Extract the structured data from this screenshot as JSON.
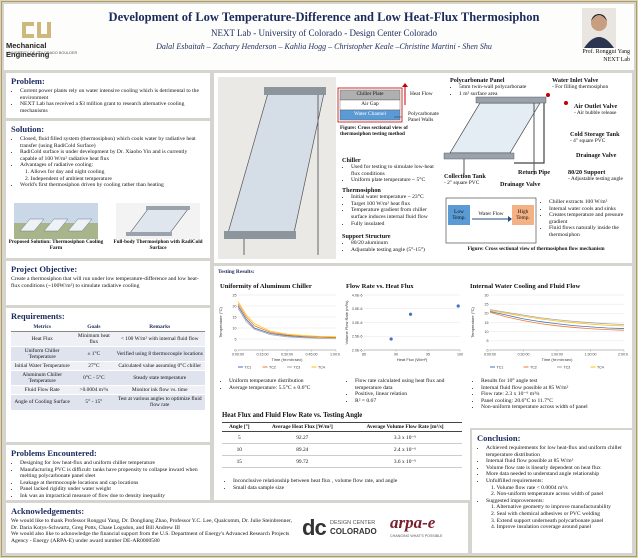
{
  "header": {
    "title": "Development of Low Temperature-Difference and Low Heat-Flux Thermosiphon",
    "subtitle": "NEXT Lab - University of Colorado - Design Center Colorado",
    "authors": "Dalal Esbaitah – Zachary Henderson – Kahlia Hogg – Christopher Keale –Christine Martini - Shen Shu",
    "logo": "Mechanical Engineering",
    "logo_sub": "UNIVERSITY OF COLORADO BOULDER",
    "advisor": "Prof. Ronggui Yang",
    "advisor_lab": "NEXT Lab"
  },
  "problem": {
    "heading": "Problem:",
    "items": [
      "Current power plants rely on water intensive cooling which is detrimental to the environment",
      "NEXT Lab has received a $3 million grant to research alternative cooling mechanisms"
    ]
  },
  "solution": {
    "heading": "Solution:",
    "items": [
      "Closed, fluid filled system (thermosiphon) which cools water by radiative heat transfer (using RadiCold Surface)",
      "RadiCold surface is under development by Dr. Xiaobo Yin and is currently capable of 100 W/m² radiative heat flux",
      "Advantages of radiative cooling:"
    ],
    "advantages": [
      "1. Allows for day and night cooling",
      "2. Independent of ambient temperature"
    ],
    "final_item": "World's first thermosiphon driven by cooling rather than heating",
    "figures": [
      {
        "caption": "Proposed Solution: Thermosiphon Cooling Farm"
      },
      {
        "caption": "Full-body Thermosiphon with RadiCold Surface"
      }
    ]
  },
  "objective": {
    "heading": "Project Objective:",
    "text": "Create a thermosiphon that will run under low temperature-difference and low heat-flux conditions (~100W/m²) to simulate radiative cooling"
  },
  "requirements": {
    "heading": "Requirements:",
    "columns": [
      "Metrics",
      "Goals",
      "Remarks"
    ],
    "rows": [
      [
        "Heat Flux",
        "Minimum heat flux",
        "< 100 W/m² with internal fluid flow"
      ],
      [
        "Uniform Chiller Temperature",
        "± 1°C",
        "Verified using 8 thermocouple locations"
      ],
      [
        "Initial Water Temperature",
        "27°C",
        "Calculated value assuming 0°C chiller"
      ],
      [
        "Aluminum Chiller Temperature",
        "0°C - 5°C",
        "Steady state temperature"
      ],
      [
        "Fluid Flow Rate",
        ">0.0004 m³/s",
        "Monitor ink flow vs. time"
      ],
      [
        "Angle of Cooling Surface",
        "5° - 15°",
        "Test at various angles to optimize fluid flow rate"
      ]
    ]
  },
  "problems": {
    "heading": "Problems Encountered:",
    "items": [
      "Designing for low heat-flux and uniform chiller temperature",
      "Manufacturing PVC is difficult: tanks have propensity to collapse inward when melting polycarbonate panel sleet",
      "Leakage at thermocouple locations and cap locations",
      "Panel lacked rigidity under water weight",
      "Ink was an impractical measure of flow due to density inequality"
    ]
  },
  "acknowledgements": {
    "heading": "Acknowledgements:",
    "paragraphs": [
      "We would like to thank Professor Ronggui Yang, Dr. Dongliang Zhao, Professor Y.C. Lee, Qualcomm, Dr. Julie Steinbrenner, Dr. Daria Kotys-Schwartz, Greg Potts, Chase Logsdon, and Bill Andrew III",
      "We would also like to acknowledge the financial support from the U.S. Department of Energy's Advanced Research Projects Agency - Energy (ARPA-E) under award number DE-AR0000580"
    ],
    "logos": {
      "dc_mark": "dc",
      "dcc_line1": "DESIGN CENTER",
      "dcc_line2": "COLORADO",
      "arpae": "arpa-e",
      "arpae_tag": "CHANGING WHAT'S POSSIBLE"
    }
  },
  "design": {
    "cross_section": {
      "chiller_plate": "Chiller Plate",
      "air_gap": "Air Gap",
      "water_channel": "Water Channel",
      "heat_flow": "Heat Flow",
      "walls": "Polycarbonate Panel Walls",
      "caption": "Figure: Cross sectional view of thermosiphon testing method"
    },
    "chiller": {
      "heading": "Chiller",
      "items": [
        "Used for testing to simulate low-heat flux conditions",
        "Uniform plate temperature ~ 5°C"
      ]
    },
    "thermosiphon": {
      "heading": "Thermosiphon",
      "items": [
        "Initial water temperature ~ 23°C",
        "Target 100 W/m² heat flux",
        "Temperature gradient from chiller surface induces internal fluid flow",
        "Fully insulated"
      ]
    },
    "support": {
      "heading": "Support Structure",
      "items": [
        "80/20 aluminum",
        "Adjustable testing angle (5°-15°)"
      ]
    },
    "parts": {
      "panel": {
        "heading": "Polycarbonate Panel",
        "items": [
          "5mm twin-wall polycarbonate",
          "1 m² surface area"
        ]
      },
      "inlet": {
        "heading": "Water Inlet Valve",
        "note": "- For filling thermosiphon"
      },
      "outlet": {
        "heading": "Air Outlet Valve",
        "note": "- Air bubble release"
      },
      "cold_tank": {
        "heading": "Cold Storage Tank",
        "note": "- 4\" square PVC"
      },
      "drain_1": {
        "heading": "Drainage Valve"
      },
      "return_pipe": {
        "heading": "Return Pipe"
      },
      "support": {
        "heading": "80/20 Support",
        "note": "- Adjustable testing angle"
      },
      "collection": {
        "heading": "Collection Tank",
        "note": "- 2\" square PVC"
      },
      "drain_2": {
        "heading": "Drainage Valve"
      }
    },
    "flow": {
      "low": "Low Temp.",
      "water_flow": "Water Flow",
      "high": "High Temp.",
      "items": [
        "Chiller extracts 100 W/m²",
        "Internal water cools and sinks",
        "Creates temperature and pressure gradient",
        "Fluid flows naturally inside the thermosiphon"
      ],
      "caption": "Figure: Cross sectional view of thermosiphon flow mechanism"
    }
  },
  "testing": {
    "heading": "Testing Results:",
    "charts": [
      {
        "type": "line",
        "title": "Uniformity of Aluminum Chiller",
        "x_label": "Time (hr:min:sec)",
        "y_label": "Temperature (°C)",
        "xlim": [
          0,
          60
        ],
        "xticks": [
          {
            "value": 0,
            "label": "0:00:00"
          },
          {
            "value": 15,
            "label": "0:15:00"
          },
          {
            "value": 30,
            "label": "0:30:00"
          },
          {
            "value": 45,
            "label": "0:45:00"
          },
          {
            "value": 60,
            "label": "1:00:00"
          }
        ],
        "ylim": [
          0,
          25
        ],
        "yticks": [
          0,
          5,
          10,
          15,
          20,
          25
        ],
        "x": [
          0,
          5,
          10,
          20,
          30,
          40,
          50,
          60
        ],
        "series": [
          {
            "name": "TC1",
            "color": "#4472c4",
            "values": [
              20,
              14,
              10,
              7.5,
              6.5,
              6,
              5.8,
              5.6
            ]
          },
          {
            "name": "TC2",
            "color": "#ed7d31",
            "values": [
              21,
              15,
              11,
              8,
              6.8,
              6.2,
              5.9,
              5.7
            ]
          },
          {
            "name": "TC3",
            "color": "#a5a5a5",
            "values": [
              19,
              13,
              9.5,
              7,
              6,
              5.6,
              5.3,
              5.1
            ]
          },
          {
            "name": "TC4",
            "color": "#ffc000",
            "values": [
              22,
              16,
              12,
              8.5,
              7.2,
              6.6,
              6.2,
              6
            ]
          }
        ]
      },
      {
        "type": "scatter",
        "title": "Flow Rate vs. Heat Flux",
        "x_label": "Heat Flux (W/m²)",
        "y_label": "Volume Flow Rate (m³/s)",
        "xlim": [
          85,
          100
        ],
        "xticks": [
          85,
          90,
          95,
          100
        ],
        "ylim": [
          2e-06,
          4e-06
        ],
        "yticks": [
          {
            "value": 2e-06,
            "label": "2.0E-6"
          },
          {
            "value": 2.5e-06,
            "label": "2.5E-6"
          },
          {
            "value": 3e-06,
            "label": "3.0E-6"
          },
          {
            "value": 3.5e-06,
            "label": "3.5E-6"
          },
          {
            "value": 4e-06,
            "label": "4.0E-6"
          }
        ],
        "x": [
          89.24,
          92.27,
          99.72
        ],
        "values": [
          2.4e-06,
          3.3e-06,
          3.6e-06
        ],
        "color": "#4472c4"
      },
      {
        "type": "line",
        "title": "Internal Water Cooling and Fluid Flow",
        "x_label": "Time (hr:min:sec)",
        "y_label": "Temperature (°C)",
        "xlim": [
          0,
          120
        ],
        "xticks": [
          {
            "value": 0,
            "label": "0:00:00"
          },
          {
            "value": 30,
            "label": "0:30:00"
          },
          {
            "value": 60,
            "label": "1:00:00"
          },
          {
            "value": 90,
            "label": "1:30:00"
          },
          {
            "value": 120,
            "label": "2:00:00"
          }
        ],
        "ylim": [
          0,
          30
        ],
        "yticks": [
          0,
          5,
          10,
          15,
          20,
          25,
          30
        ],
        "x": [
          0,
          15,
          30,
          45,
          60,
          75,
          90,
          105,
          120
        ],
        "series": [
          {
            "name": "TC1",
            "color": "#4472c4",
            "values": [
              21,
              19,
              17,
              15.5,
              14.3,
              13.3,
              12.6,
              12,
              11.7
            ]
          },
          {
            "name": "TC2",
            "color": "#ed7d31",
            "values": [
              20.6,
              18,
              16,
              14.4,
              13.2,
              12.3,
              11.6,
              11.1,
              10.8
            ]
          },
          {
            "name": "TC3",
            "color": "#a5a5a5",
            "values": [
              22,
              20.5,
              19,
              17.6,
              16.5,
              15.6,
              14.9,
              14.3,
              13.9
            ]
          },
          {
            "name": "TC4",
            "color": "#ffc000",
            "values": [
              21.5,
              20,
              18.4,
              17,
              15.8,
              14.9,
              14.1,
              13.5,
              13.1
            ]
          }
        ]
      }
    ],
    "chart_notes": [
      [
        "Uniform temperature distribution",
        "Average temperature: 5.5°C ± 0.6°C"
      ],
      [
        "Flow rate calculated using heat flux and temperature data",
        "Positive, linear relation",
        "R² = 0.67"
      ],
      [
        "Results for 10° angle test",
        "Internal fluid flow possible at 85 W/m²",
        "Flow rate: 2.3 x 10⁻⁶ m³/s",
        "Panel cooling: 20.6°C to 11.7°C",
        "Non-uniform temperature across width of panel"
      ]
    ],
    "table": {
      "title": "Heat Flux and Fluid Flow Rate vs. Testing Angle",
      "columns": [
        "Angle [°]",
        "Average Heat Flux [W/m²]",
        "Average Volume Flow Rate [m³/s]"
      ],
      "rows": [
        [
          5,
          92.27,
          "3.3 x 10⁻⁶"
        ],
        [
          10,
          89.24,
          "2.4 x 10⁻⁶"
        ],
        [
          15,
          99.72,
          "3.6 x 10⁻⁶"
        ]
      ]
    },
    "table_notes": [
      "Inconclusive relationship between heat flux , volume flow rate, and angle",
      "Small data sample size"
    ]
  },
  "conclusion": {
    "heading": "Conclusion:",
    "items": [
      "Achieved requirements for low heat-flux and uniform chiller temperature distribution",
      "Internal fluid flow possible at 85 W/m²",
      "Volume flow rate is linearly dependent on heat flux",
      "More data needed to understand angle relationship",
      "Unfulfilled requirements:"
    ],
    "unfulfilled": [
      "1. Volume flow rate < 0.0004 m³/s",
      "2. Non-uniform temperature across width of panel"
    ],
    "improvements_heading": "Suggested improvements:",
    "improvements": [
      "1. Alternative geometry to improve manufacturability",
      "2. Seal with chemical adhesives or PVC welding",
      "3. Extend support underneath polycarbonate panel",
      "4. Improve insulation coverage around panel"
    ]
  }
}
